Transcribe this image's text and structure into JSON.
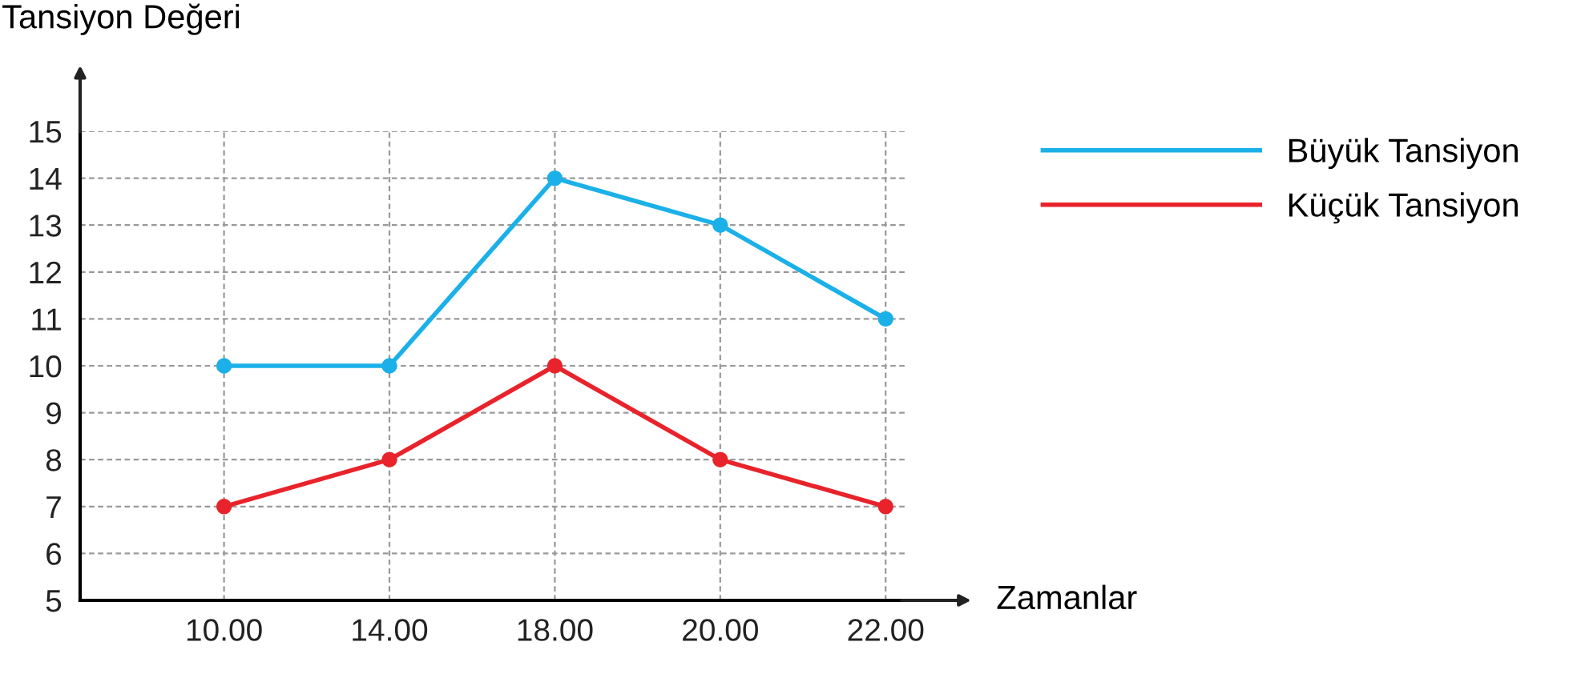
{
  "chart_data": {
    "type": "line",
    "ylabel": "Tansiyon Değeri",
    "xlabel": "Zamanlar",
    "categories": [
      "10.00",
      "14.00",
      "18.00",
      "20.00",
      "22.00"
    ],
    "series": [
      {
        "name": "Büyük Tansiyon",
        "color": "#1bb0e8",
        "values": [
          10,
          10,
          14,
          13,
          11
        ]
      },
      {
        "name": "Küçük Tansiyon",
        "color": "#e8232b",
        "values": [
          7,
          8,
          10,
          8,
          7
        ]
      }
    ],
    "ylim": [
      5,
      15
    ],
    "yticks": [
      5,
      6,
      7,
      8,
      9,
      10,
      11,
      12,
      13,
      14,
      15
    ],
    "grid": true,
    "legend": "right",
    "marker": "circle",
    "line_style": "solid"
  }
}
